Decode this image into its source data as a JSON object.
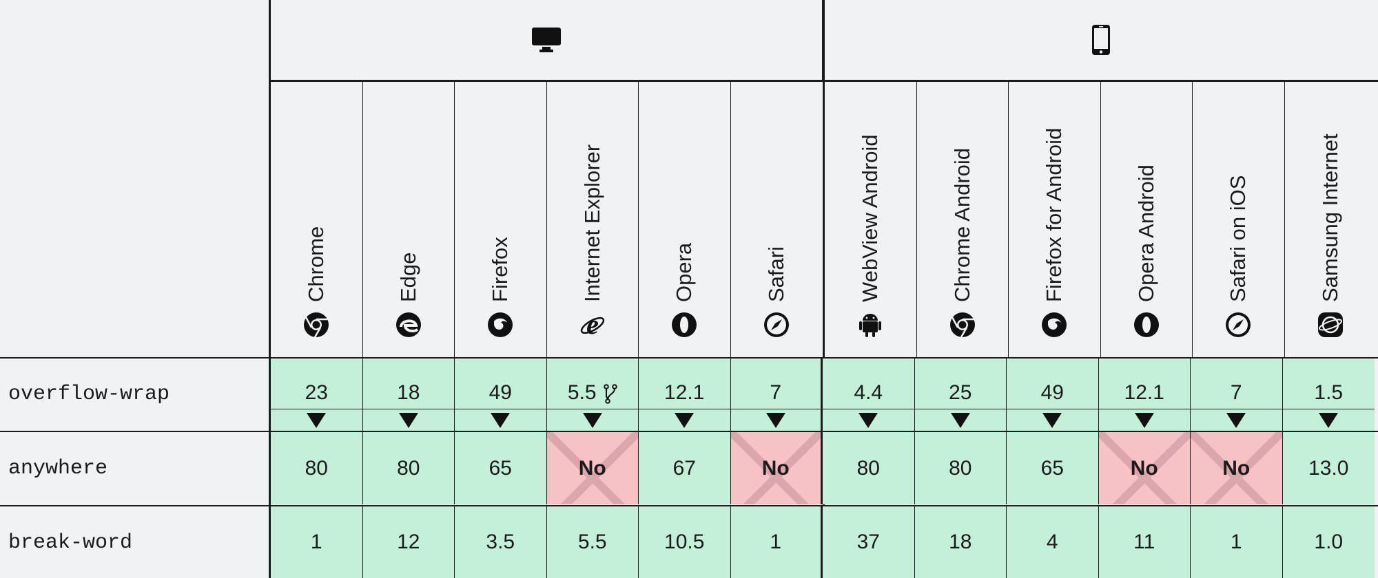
{
  "groups": {
    "desktop_icon": "desktop-icon",
    "mobile_icon": "mobile-phone-icon"
  },
  "browsers": [
    {
      "name": "Chrome",
      "icon": "chrome-icon"
    },
    {
      "name": "Edge",
      "icon": "edge-icon"
    },
    {
      "name": "Firefox",
      "icon": "firefox-icon"
    },
    {
      "name": "Internet Explorer",
      "icon": "internet-explorer-icon"
    },
    {
      "name": "Opera",
      "icon": "opera-icon"
    },
    {
      "name": "Safari",
      "icon": "safari-icon"
    },
    {
      "name": "WebView Android",
      "icon": "android-icon"
    },
    {
      "name": "Chrome Android",
      "icon": "chrome-icon"
    },
    {
      "name": "Firefox for Android",
      "icon": "firefox-icon"
    },
    {
      "name": "Opera Android",
      "icon": "opera-icon"
    },
    {
      "name": "Safari on iOS",
      "icon": "safari-icon"
    },
    {
      "name": "Samsung Internet",
      "icon": "samsung-internet-icon"
    }
  ],
  "rows": [
    {
      "feature": "overflow-wrap",
      "values": [
        "23",
        "18",
        "49",
        "5.5",
        "12.1",
        "7",
        "4.4",
        "25",
        "49",
        "12.1",
        "7",
        "1.5"
      ],
      "supported": [
        true,
        true,
        true,
        true,
        true,
        true,
        true,
        true,
        true,
        true,
        true,
        true
      ],
      "ie_note_icon": "fork-icon"
    },
    {
      "feature": "anywhere",
      "values": [
        "80",
        "80",
        "65",
        "No",
        "67",
        "No",
        "80",
        "80",
        "65",
        "No",
        "No",
        "13.0"
      ],
      "supported": [
        true,
        true,
        true,
        false,
        true,
        false,
        true,
        true,
        true,
        false,
        false,
        true
      ]
    },
    {
      "feature": "break-word",
      "values": [
        "1",
        "12",
        "3.5",
        "5.5",
        "10.5",
        "1",
        "37",
        "18",
        "4",
        "11",
        "1",
        "1.0"
      ],
      "supported": [
        true,
        true,
        true,
        true,
        true,
        true,
        true,
        true,
        true,
        true,
        true,
        true
      ]
    }
  ],
  "colors": {
    "supported": "#c4efd9",
    "unsupported": "#f7c2c6",
    "border": "#1b1b1b",
    "background": "#f1f2f4"
  }
}
